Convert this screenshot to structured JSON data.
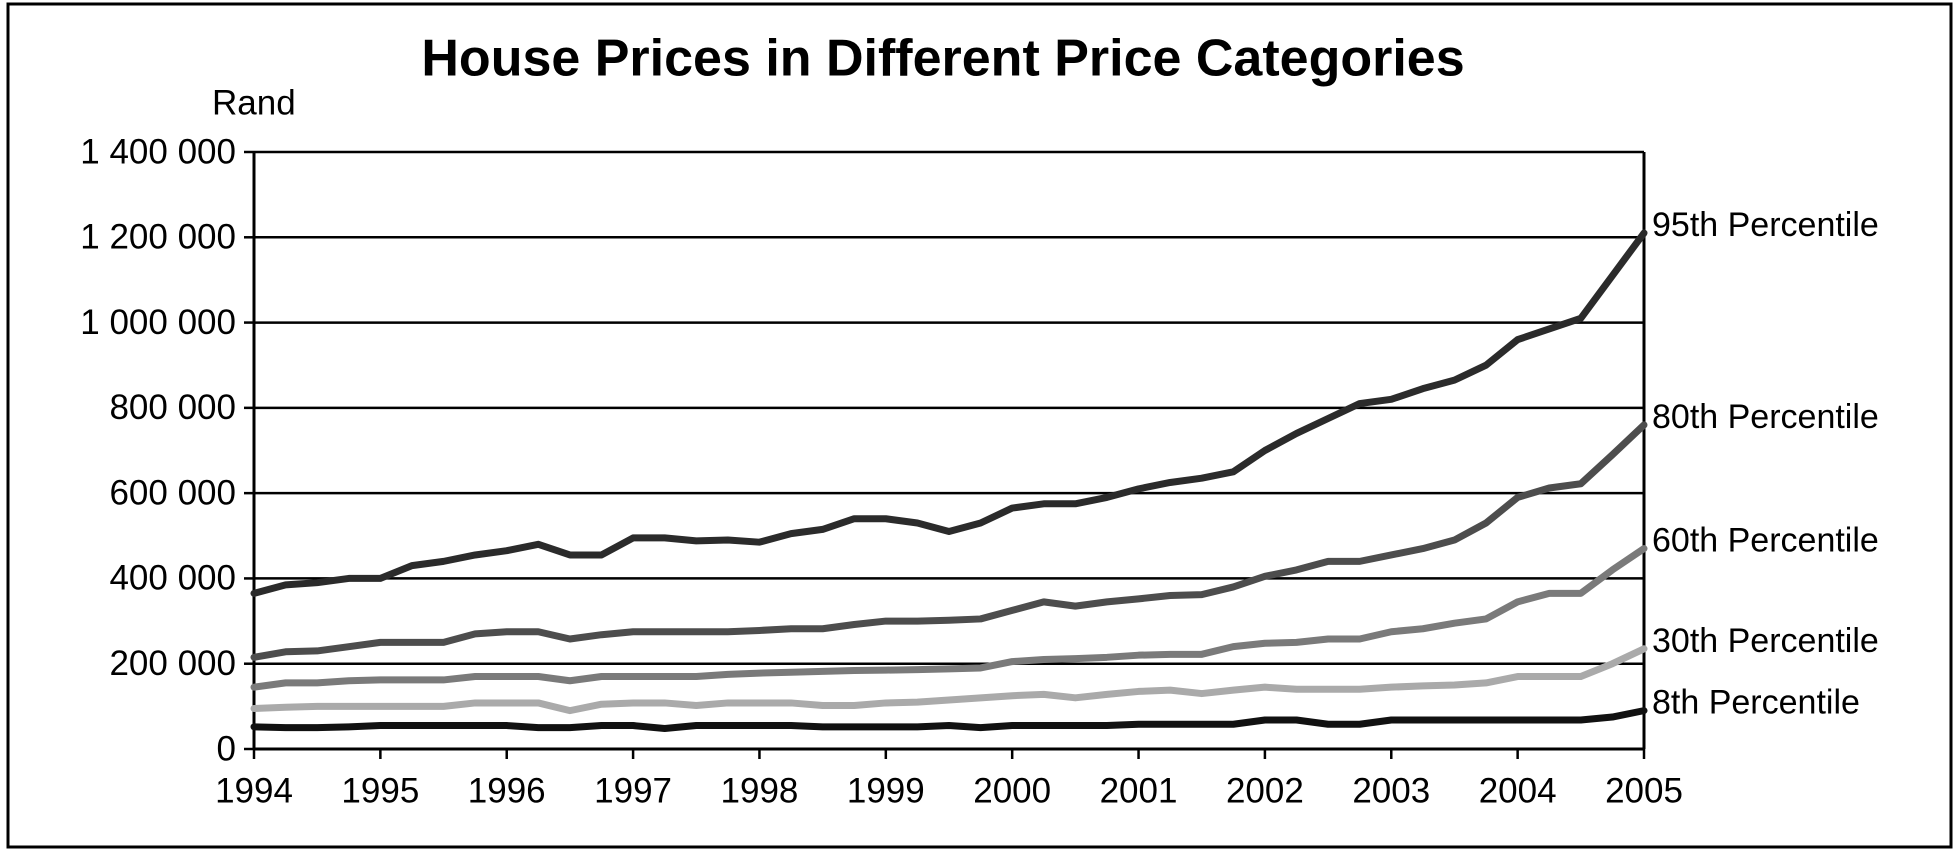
{
  "chart_data": {
    "type": "line",
    "title": "House Prices in Different Price Categories",
    "y_axis_label": "Rand",
    "x": [
      1994,
      1994.25,
      1994.5,
      1994.75,
      1995,
      1995.25,
      1995.5,
      1995.75,
      1996,
      1996.25,
      1996.5,
      1996.75,
      1997,
      1997.25,
      1997.5,
      1997.75,
      1998,
      1998.25,
      1998.5,
      1998.75,
      1999,
      1999.25,
      1999.5,
      1999.75,
      2000,
      2000.25,
      2000.5,
      2000.75,
      2001,
      2001.25,
      2001.5,
      2001.75,
      2002,
      2002.25,
      2002.5,
      2002.75,
      2003,
      2003.25,
      2003.5,
      2003.75,
      2004,
      2004.25,
      2004.5,
      2004.75,
      2005
    ],
    "xlim": [
      1994,
      2005
    ],
    "xticks": [
      1994,
      1995,
      1996,
      1997,
      1998,
      1999,
      2000,
      2001,
      2002,
      2003,
      2004,
      2005
    ],
    "ylim": [
      0,
      1400000
    ],
    "yticks": [
      {
        "value": 0,
        "label": "0"
      },
      {
        "value": 200000,
        "label": "200 000"
      },
      {
        "value": 400000,
        "label": "400 000"
      },
      {
        "value": 600000,
        "label": "600 000"
      },
      {
        "value": 800000,
        "label": "800 000"
      },
      {
        "value": 1000000,
        "label": "1 000 000"
      },
      {
        "value": 1200000,
        "label": "1 200 000"
      },
      {
        "value": 1400000,
        "label": "1 400 000"
      }
    ],
    "grid": true,
    "series": [
      {
        "name": "95th Percentile",
        "color": "#2b2b2b",
        "values": [
          365000,
          385000,
          390000,
          400000,
          400000,
          430000,
          440000,
          455000,
          465000,
          480000,
          455000,
          455000,
          495000,
          495000,
          488000,
          490000,
          485000,
          505000,
          515000,
          540000,
          540000,
          530000,
          510000,
          530000,
          565000,
          575000,
          575000,
          590000,
          610000,
          625000,
          635000,
          650000,
          700000,
          740000,
          775000,
          810000,
          820000,
          845000,
          865000,
          900000,
          960000,
          985000,
          1010000,
          1110000,
          1210000
        ]
      },
      {
        "name": "80th Percentile",
        "color": "#4d4d4d",
        "values": [
          215000,
          228000,
          230000,
          240000,
          250000,
          250000,
          250000,
          270000,
          275000,
          275000,
          258000,
          268000,
          275000,
          275000,
          275000,
          275000,
          278000,
          282000,
          282000,
          292000,
          300000,
          300000,
          302000,
          305000,
          325000,
          345000,
          335000,
          345000,
          352000,
          360000,
          362000,
          380000,
          405000,
          420000,
          440000,
          440000,
          455000,
          470000,
          490000,
          530000,
          590000,
          612000,
          622000,
          690000,
          760000
        ]
      },
      {
        "name": "60th Percentile",
        "color": "#7a7a7a",
        "values": [
          145000,
          155000,
          155000,
          160000,
          162000,
          162000,
          162000,
          170000,
          170000,
          170000,
          160000,
          170000,
          170000,
          170000,
          170000,
          175000,
          178000,
          180000,
          182000,
          184000,
          185000,
          186000,
          188000,
          190000,
          205000,
          210000,
          212000,
          215000,
          220000,
          222000,
          222000,
          240000,
          248000,
          250000,
          258000,
          258000,
          275000,
          282000,
          295000,
          305000,
          345000,
          365000,
          365000,
          420000,
          470000
        ]
      },
      {
        "name": "30th Percentile",
        "color": "#aaaaaa",
        "values": [
          95000,
          98000,
          100000,
          100000,
          100000,
          100000,
          100000,
          108000,
          108000,
          108000,
          90000,
          105000,
          108000,
          108000,
          102000,
          108000,
          108000,
          108000,
          102000,
          102000,
          108000,
          110000,
          115000,
          120000,
          125000,
          128000,
          120000,
          128000,
          135000,
          138000,
          130000,
          138000,
          145000,
          140000,
          140000,
          140000,
          145000,
          148000,
          150000,
          155000,
          170000,
          170000,
          170000,
          200000,
          235000
        ]
      },
      {
        "name": "8th Percentile",
        "color": "#111111",
        "values": [
          52000,
          50000,
          50000,
          52000,
          55000,
          55000,
          55000,
          55000,
          55000,
          50000,
          50000,
          55000,
          55000,
          48000,
          55000,
          55000,
          55000,
          55000,
          52000,
          52000,
          52000,
          52000,
          55000,
          50000,
          55000,
          55000,
          55000,
          55000,
          58000,
          58000,
          58000,
          58000,
          68000,
          68000,
          58000,
          58000,
          68000,
          68000,
          68000,
          68000,
          68000,
          68000,
          68000,
          75000,
          90000
        ]
      }
    ]
  }
}
